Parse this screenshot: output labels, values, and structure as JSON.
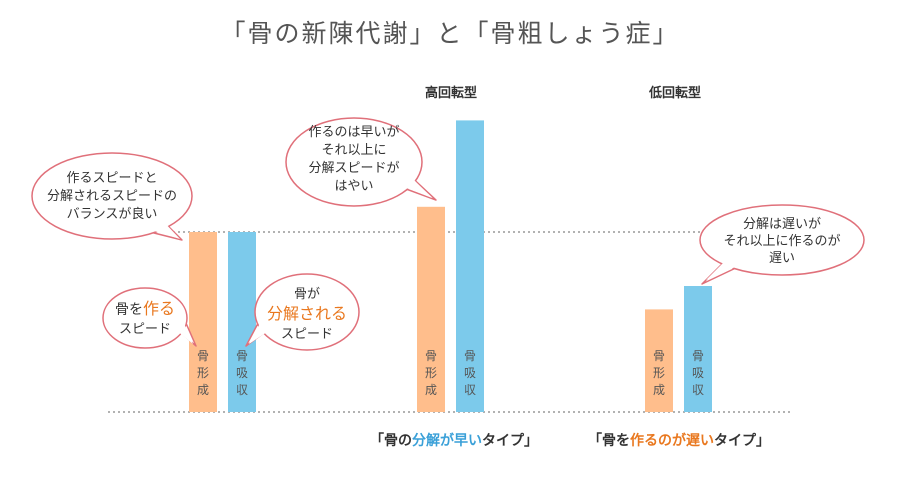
{
  "title": "「骨の新陳代謝」と「骨粗しょう症」",
  "colors": {
    "formation": "#ffbe8c",
    "resorption": "#7ccaeb",
    "accent_orange": "#e9781f",
    "accent_blue": "#3aa0d8",
    "bubble_stroke": "#e0707a",
    "dotted_line": "#666666"
  },
  "bar_labels": {
    "formation": "骨形成",
    "resorption": "骨吸収"
  },
  "groups": [
    {
      "title": "",
      "formation": 1.0,
      "resorption": 1.0
    },
    {
      "title": "高回転型",
      "formation": 1.14,
      "resorption": 1.62
    },
    {
      "title": "低回転型",
      "formation": 0.57,
      "resorption": 0.7
    }
  ],
  "bubbles": {
    "balance": [
      "作るスピードと",
      "分解されるスピードの",
      "バランスが良い"
    ],
    "make_speed": {
      "pre": "骨を",
      "accent": "作る",
      "post": "スピード"
    },
    "break_speed": {
      "pre": "骨が",
      "accent": "分解される",
      "post": "スピード"
    },
    "high_turnover": [
      "作るのは早いが",
      "それ以上に",
      "分解スピードが",
      "はやい"
    ],
    "low_turnover": [
      "分解は遅いが",
      "それ以上に作るのが",
      "遅い"
    ]
  },
  "bottom_labels": {
    "high": {
      "open": "「骨の",
      "accent": "分解が早い",
      "close": "タイプ」"
    },
    "low": {
      "open": "「骨を",
      "accent": "作るのが遅い",
      "close": "タイプ」"
    }
  }
}
